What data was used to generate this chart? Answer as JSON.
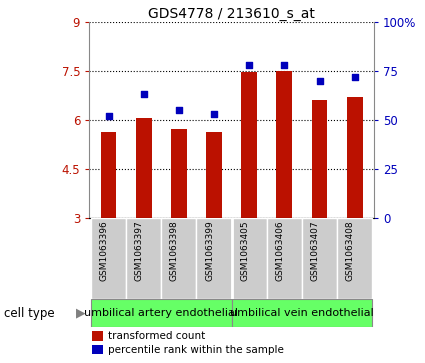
{
  "title": "GDS4778 / 213610_s_at",
  "samples": [
    "GSM1063396",
    "GSM1063397",
    "GSM1063398",
    "GSM1063399",
    "GSM1063405",
    "GSM1063406",
    "GSM1063407",
    "GSM1063408"
  ],
  "transformed_count": [
    5.62,
    6.05,
    5.72,
    5.62,
    7.45,
    7.5,
    6.6,
    6.7
  ],
  "percentile_rank": [
    52,
    63,
    55,
    53,
    78,
    78,
    70,
    72
  ],
  "bar_color": "#bb1100",
  "dot_color": "#0000bb",
  "ylim_left": [
    3,
    9
  ],
  "ylim_right": [
    0,
    100
  ],
  "yticks_left": [
    3,
    4.5,
    6,
    7.5,
    9
  ],
  "yticks_right": [
    0,
    25,
    50,
    75,
    100
  ],
  "ytick_labels_left": [
    "3",
    "4.5",
    "6",
    "7.5",
    "9"
  ],
  "ytick_labels_right": [
    "0",
    "25",
    "50",
    "75",
    "100%"
  ],
  "cell_type_labels": [
    "umbilical artery endothelial",
    "umbilical vein endothelial"
  ],
  "num_groups": [
    4,
    4
  ],
  "cell_type_color": "#66ff66",
  "cell_type_border": "#888888",
  "legend_bar_label": "transformed count",
  "legend_dot_label": "percentile rank within the sample",
  "cell_type_header": "cell type",
  "bg_xtick": "#cccccc",
  "bar_width": 0.45,
  "title_fontsize": 10,
  "tick_fontsize": 8.5,
  "label_fontsize": 8
}
